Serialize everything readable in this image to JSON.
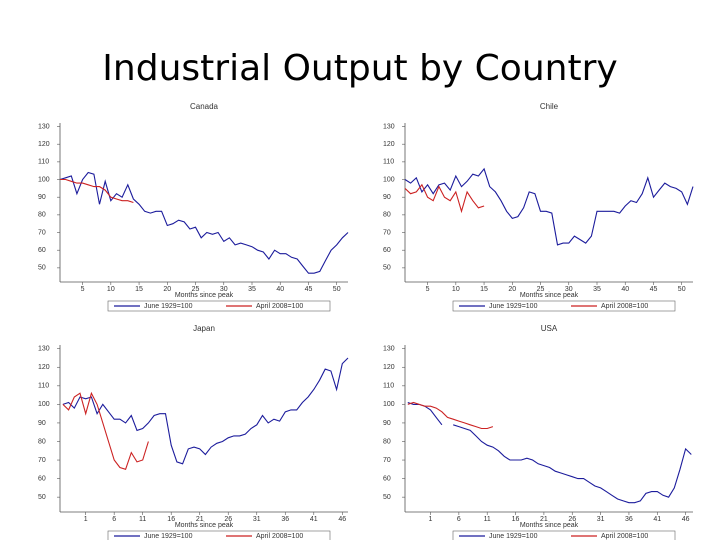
{
  "title": "Industrial Output by Country",
  "chart_data": [
    {
      "type": "line",
      "title": "Canada",
      "x_label": "Months since peak",
      "xlim": [
        1,
        52
      ],
      "xticks": [
        5,
        10,
        15,
        20,
        25,
        30,
        35,
        40,
        45,
        50
      ],
      "ylim": [
        42,
        132
      ],
      "yticks": [
        130,
        120,
        110,
        100,
        90,
        80,
        70,
        60,
        50
      ],
      "series": [
        {
          "name": "June 1929=100",
          "color": "#1c1c9c",
          "x": [
            1,
            2,
            3,
            4,
            5,
            6,
            7,
            8,
            9,
            10,
            11,
            12,
            13,
            14,
            15,
            16,
            17,
            18,
            19,
            20,
            21,
            22,
            23,
            24,
            25,
            26,
            27,
            28,
            29,
            30,
            31,
            32,
            33,
            34,
            35,
            36,
            37,
            38,
            39,
            40,
            41,
            42,
            43,
            44,
            45,
            46,
            47,
            48,
            49,
            50,
            51,
            52
          ],
          "values": [
            100,
            101,
            102,
            92,
            100,
            104,
            103,
            86,
            99,
            88,
            92,
            90,
            97,
            89,
            86,
            82,
            81,
            82,
            82,
            74,
            75,
            77,
            76,
            72,
            73,
            67,
            70,
            69,
            70,
            65,
            67,
            63,
            64,
            63,
            62,
            60,
            59,
            55,
            60,
            58,
            58,
            56,
            55,
            51,
            47,
            47,
            48,
            54,
            60,
            63,
            67,
            70
          ]
        },
        {
          "name": "April 2008=100",
          "color": "#cc2222",
          "x": [
            1,
            2,
            3,
            4,
            5,
            6,
            7,
            8,
            9,
            10,
            11,
            12,
            13,
            14
          ],
          "values": [
            100,
            100,
            99,
            98,
            98,
            97,
            96,
            96,
            94,
            90,
            89,
            88,
            88,
            87
          ]
        }
      ]
    },
    {
      "type": "line",
      "title": "Chile",
      "x_label": "Months since peak",
      "xlim": [
        1,
        52
      ],
      "xticks": [
        5,
        10,
        15,
        20,
        25,
        30,
        35,
        40,
        45,
        50
      ],
      "ylim": [
        42,
        132
      ],
      "yticks": [
        130,
        120,
        110,
        100,
        90,
        80,
        70,
        60,
        50
      ],
      "series": [
        {
          "name": "June 1929=100",
          "color": "#1c1c9c",
          "x": [
            1,
            2,
            3,
            4,
            5,
            6,
            7,
            8,
            9,
            10,
            11,
            12,
            13,
            14,
            15,
            16,
            17,
            18,
            19,
            20,
            21,
            22,
            23,
            24,
            25,
            26,
            27,
            28,
            29,
            30,
            31,
            32,
            33,
            34,
            35,
            36,
            37,
            38,
            39,
            40,
            41,
            42,
            43,
            44,
            45,
            46,
            47,
            48,
            49,
            50,
            51,
            52
          ],
          "values": [
            100,
            98,
            101,
            93,
            97,
            92,
            97,
            98,
            94,
            102,
            96,
            99,
            103,
            102,
            106,
            96,
            93,
            88,
            82,
            78,
            79,
            84,
            93,
            92,
            82,
            82,
            81,
            63,
            64,
            64,
            68,
            66,
            64,
            68,
            82,
            82,
            82,
            82,
            81,
            85,
            88,
            87,
            92,
            101,
            90,
            94,
            98,
            96,
            95,
            93,
            86,
            96
          ]
        },
        {
          "name": "April 2008=100",
          "color": "#cc2222",
          "x": [
            1,
            2,
            3,
            4,
            5,
            6,
            7,
            8,
            9,
            10,
            11,
            12,
            13,
            14,
            15
          ],
          "values": [
            95,
            92,
            93,
            97,
            90,
            88,
            96,
            90,
            88,
            93,
            82,
            93,
            88,
            84,
            85
          ]
        }
      ]
    },
    {
      "type": "line",
      "title": "Japan",
      "x_label": "Months since peak",
      "xlim": [
        -3.5,
        47
      ],
      "xticks": [
        1,
        6,
        11,
        16,
        21,
        26,
        31,
        36,
        41,
        46
      ],
      "ylim": [
        42,
        132
      ],
      "yticks": [
        130,
        120,
        110,
        100,
        90,
        80,
        70,
        60,
        50
      ],
      "series": [
        {
          "name": "June 1929=100",
          "color": "#1c1c9c",
          "x": [
            -3,
            -2,
            -1,
            0,
            1,
            2,
            3,
            4,
            5,
            6,
            7,
            8,
            9,
            10,
            11,
            12,
            13,
            14,
            15,
            16,
            17,
            18,
            19,
            20,
            21,
            22,
            23,
            24,
            25,
            26,
            27,
            28,
            29,
            30,
            31,
            32,
            33,
            34,
            35,
            36,
            37,
            38,
            39,
            40,
            41,
            42,
            43,
            44,
            45,
            46,
            47
          ],
          "values": [
            100,
            101,
            98,
            104,
            103,
            104,
            95,
            100,
            96,
            92,
            92,
            90,
            94,
            86,
            87,
            90,
            94,
            95,
            95,
            78,
            69,
            68,
            76,
            77,
            76,
            73,
            77,
            79,
            80,
            82,
            83,
            83,
            84,
            87,
            89,
            94,
            90,
            92,
            91,
            96,
            97,
            97,
            101,
            104,
            108,
            113,
            119,
            118,
            108,
            122,
            125
          ]
        },
        {
          "name": "April 2008=100",
          "color": "#cc2222",
          "x": [
            -3,
            -2,
            -1,
            0,
            1,
            2,
            3,
            4,
            5,
            6,
            7,
            8,
            9,
            10,
            11,
            12
          ],
          "values": [
            100,
            97,
            104,
            106,
            95,
            106,
            100,
            90,
            80,
            70,
            66,
            65,
            74,
            69,
            70,
            80
          ]
        }
      ]
    },
    {
      "type": "line",
      "title": "USA",
      "x_label": "Months since peak",
      "xlim": [
        -3.5,
        47.3
      ],
      "xticks": [
        1,
        6,
        11,
        16,
        21,
        26,
        31,
        36,
        41,
        46
      ],
      "ylim": [
        42,
        132
      ],
      "yticks": [
        130,
        120,
        110,
        100,
        90,
        80,
        70,
        60,
        50
      ],
      "series": [
        {
          "name": "June 1929=100",
          "color": "#1c1c9c",
          "x": [
            -3,
            -2,
            -1,
            0,
            1,
            2,
            3,
            4,
            5,
            6,
            7,
            8,
            9,
            10,
            11,
            12,
            13,
            14,
            15,
            16,
            17,
            18,
            19,
            20,
            21,
            22,
            23,
            24,
            25,
            26,
            27,
            28,
            29,
            30,
            31,
            32,
            33,
            34,
            35,
            36,
            37,
            38,
            39,
            40,
            41,
            42,
            43,
            44,
            45,
            46,
            47
          ],
          "values": [
            101,
            100,
            100,
            99,
            97,
            93,
            89,
            null,
            89,
            88,
            87,
            86,
            83,
            80,
            78,
            77,
            75,
            72,
            70,
            70,
            70,
            71,
            70,
            68,
            67,
            66,
            64,
            63,
            62,
            61,
            60,
            60,
            58,
            56,
            55,
            53,
            51,
            49,
            48,
            47,
            47,
            48,
            52,
            53,
            53,
            51,
            50,
            55,
            65,
            76,
            73
          ]
        },
        {
          "name": "April 2008=100",
          "color": "#cc2222",
          "x": [
            -3,
            -2,
            -1,
            0,
            1,
            2,
            3,
            4,
            5,
            6,
            7,
            8,
            9,
            10,
            11,
            12
          ],
          "values": [
            100,
            101,
            100,
            99,
            99,
            98,
            96,
            93,
            92,
            91,
            90,
            89,
            88,
            87,
            87,
            88
          ]
        }
      ]
    }
  ]
}
